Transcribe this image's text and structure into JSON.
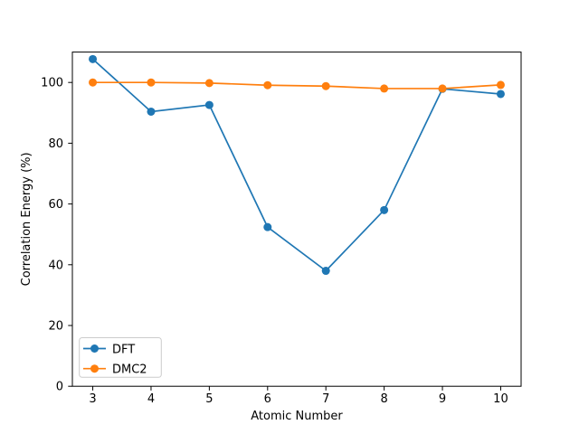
{
  "chart_data": {
    "type": "line",
    "title": "",
    "xlabel": "Atomic Number",
    "ylabel": "Correlation Energy (%)",
    "x": [
      3,
      4,
      5,
      6,
      7,
      8,
      9,
      10
    ],
    "xticks": [
      3,
      4,
      5,
      6,
      7,
      8,
      9,
      10
    ],
    "yticks": [
      0,
      20,
      40,
      60,
      80,
      100
    ],
    "xlim": [
      2.65,
      10.35
    ],
    "ylim": [
      0,
      110
    ],
    "grid": false,
    "legend_position": "lower left",
    "series": [
      {
        "name": "DFT",
        "color": "#1f77b4",
        "marker": "circle",
        "values": [
          107.7,
          90.4,
          92.6,
          52.4,
          38.0,
          58.0,
          97.9,
          96.2
        ]
      },
      {
        "name": "DMC2",
        "color": "#ff7f0e",
        "marker": "circle",
        "values": [
          100.0,
          100.0,
          99.8,
          99.1,
          98.8,
          98.0,
          98.0,
          99.2
        ]
      }
    ],
    "colors": {
      "axes": "#000000",
      "background": "#ffffff",
      "legend_border": "#cccccc"
    }
  }
}
